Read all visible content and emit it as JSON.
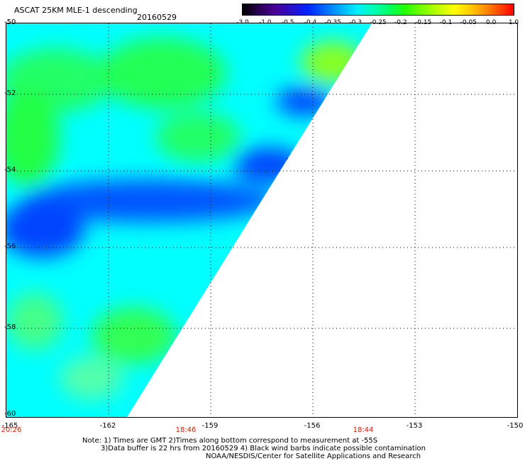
{
  "header": {
    "title": "ASCAT 25KM MLE-1 descending",
    "date": "20160529"
  },
  "colorbar": {
    "ticks": [
      "-3.0",
      "-1.0",
      "-0.5",
      "-0.4",
      "-0.35",
      "-0.3",
      "-0.25",
      "-0.2",
      "-0.15",
      "-0.1",
      "-0.05",
      "0.0",
      "1.0"
    ]
  },
  "axes": {
    "lat_ticks": [
      "-50",
      "-52",
      "-54",
      "-56",
      "-58",
      "-60"
    ],
    "lon_ticks": [
      "-165",
      "-162",
      "-159",
      "-156",
      "-153",
      "-150"
    ],
    "times": [
      "20:26",
      "18:46",
      "18:44"
    ]
  },
  "notes": {
    "line1": "Note: 1) Times are GMT 2)Times along bottom correspond to measurement at -55S",
    "line2": "3)Data buffer is 22 hrs from 20160529 4) Black wind barbs indicate possible contamination",
    "line3": "NOAA/NESDIS/Center for Satellite Applications and Research"
  },
  "map": {
    "extent": {
      "lon": [
        -165,
        -150
      ],
      "lat": [
        -60,
        -50
      ]
    },
    "swath_fill_colors": [
      "#00ffff",
      "#00ff66",
      "#0066ff",
      "#2a10c8"
    ]
  }
}
